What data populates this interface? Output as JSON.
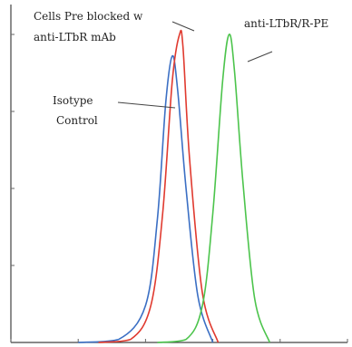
{
  "chart_data": {
    "type": "line",
    "title": "",
    "xlabel": "",
    "ylabel": "",
    "x_axis": {
      "scale": "log",
      "range": [
        0.1,
        10000
      ],
      "tick_labels_legible": false
    },
    "y_axis": {
      "range": [
        0,
        100
      ],
      "tick_labels_legible": false
    },
    "grid": false,
    "legend": "none",
    "series": [
      {
        "name": "Isotype Control",
        "color": "#3b6fc4",
        "x": [
          1,
          4,
          10,
          15,
          20,
          25,
          30,
          40,
          60,
          100
        ],
        "y": [
          0,
          1,
          12,
          40,
          78,
          93,
          82,
          50,
          15,
          0
        ]
      },
      {
        "name": "Cells Pre blocked w anti-LTbR mAb",
        "color": "#e03a2f",
        "x": [
          2,
          6,
          12,
          18,
          25,
          32,
          36,
          45,
          70,
          120
        ],
        "y": [
          0,
          1,
          12,
          42,
          85,
          100,
          96,
          60,
          16,
          0
        ]
      },
      {
        "name": "anti-LTbR/R-PE",
        "color": "#4cc44c",
        "x": [
          15,
          40,
          70,
          100,
          140,
          175,
          210,
          280,
          420,
          700
        ],
        "y": [
          0,
          1,
          12,
          42,
          85,
          100,
          88,
          52,
          14,
          0
        ]
      }
    ],
    "annotations": [
      {
        "lines": [
          "Cells Pre blocked w",
          "anti-LTbR mAb"
        ],
        "series": 1
      },
      {
        "lines": [
          "anti-LTbR/R-PE"
        ],
        "series": 2
      },
      {
        "lines": [
          "Isotype",
          "Control"
        ],
        "series": 0
      }
    ]
  }
}
